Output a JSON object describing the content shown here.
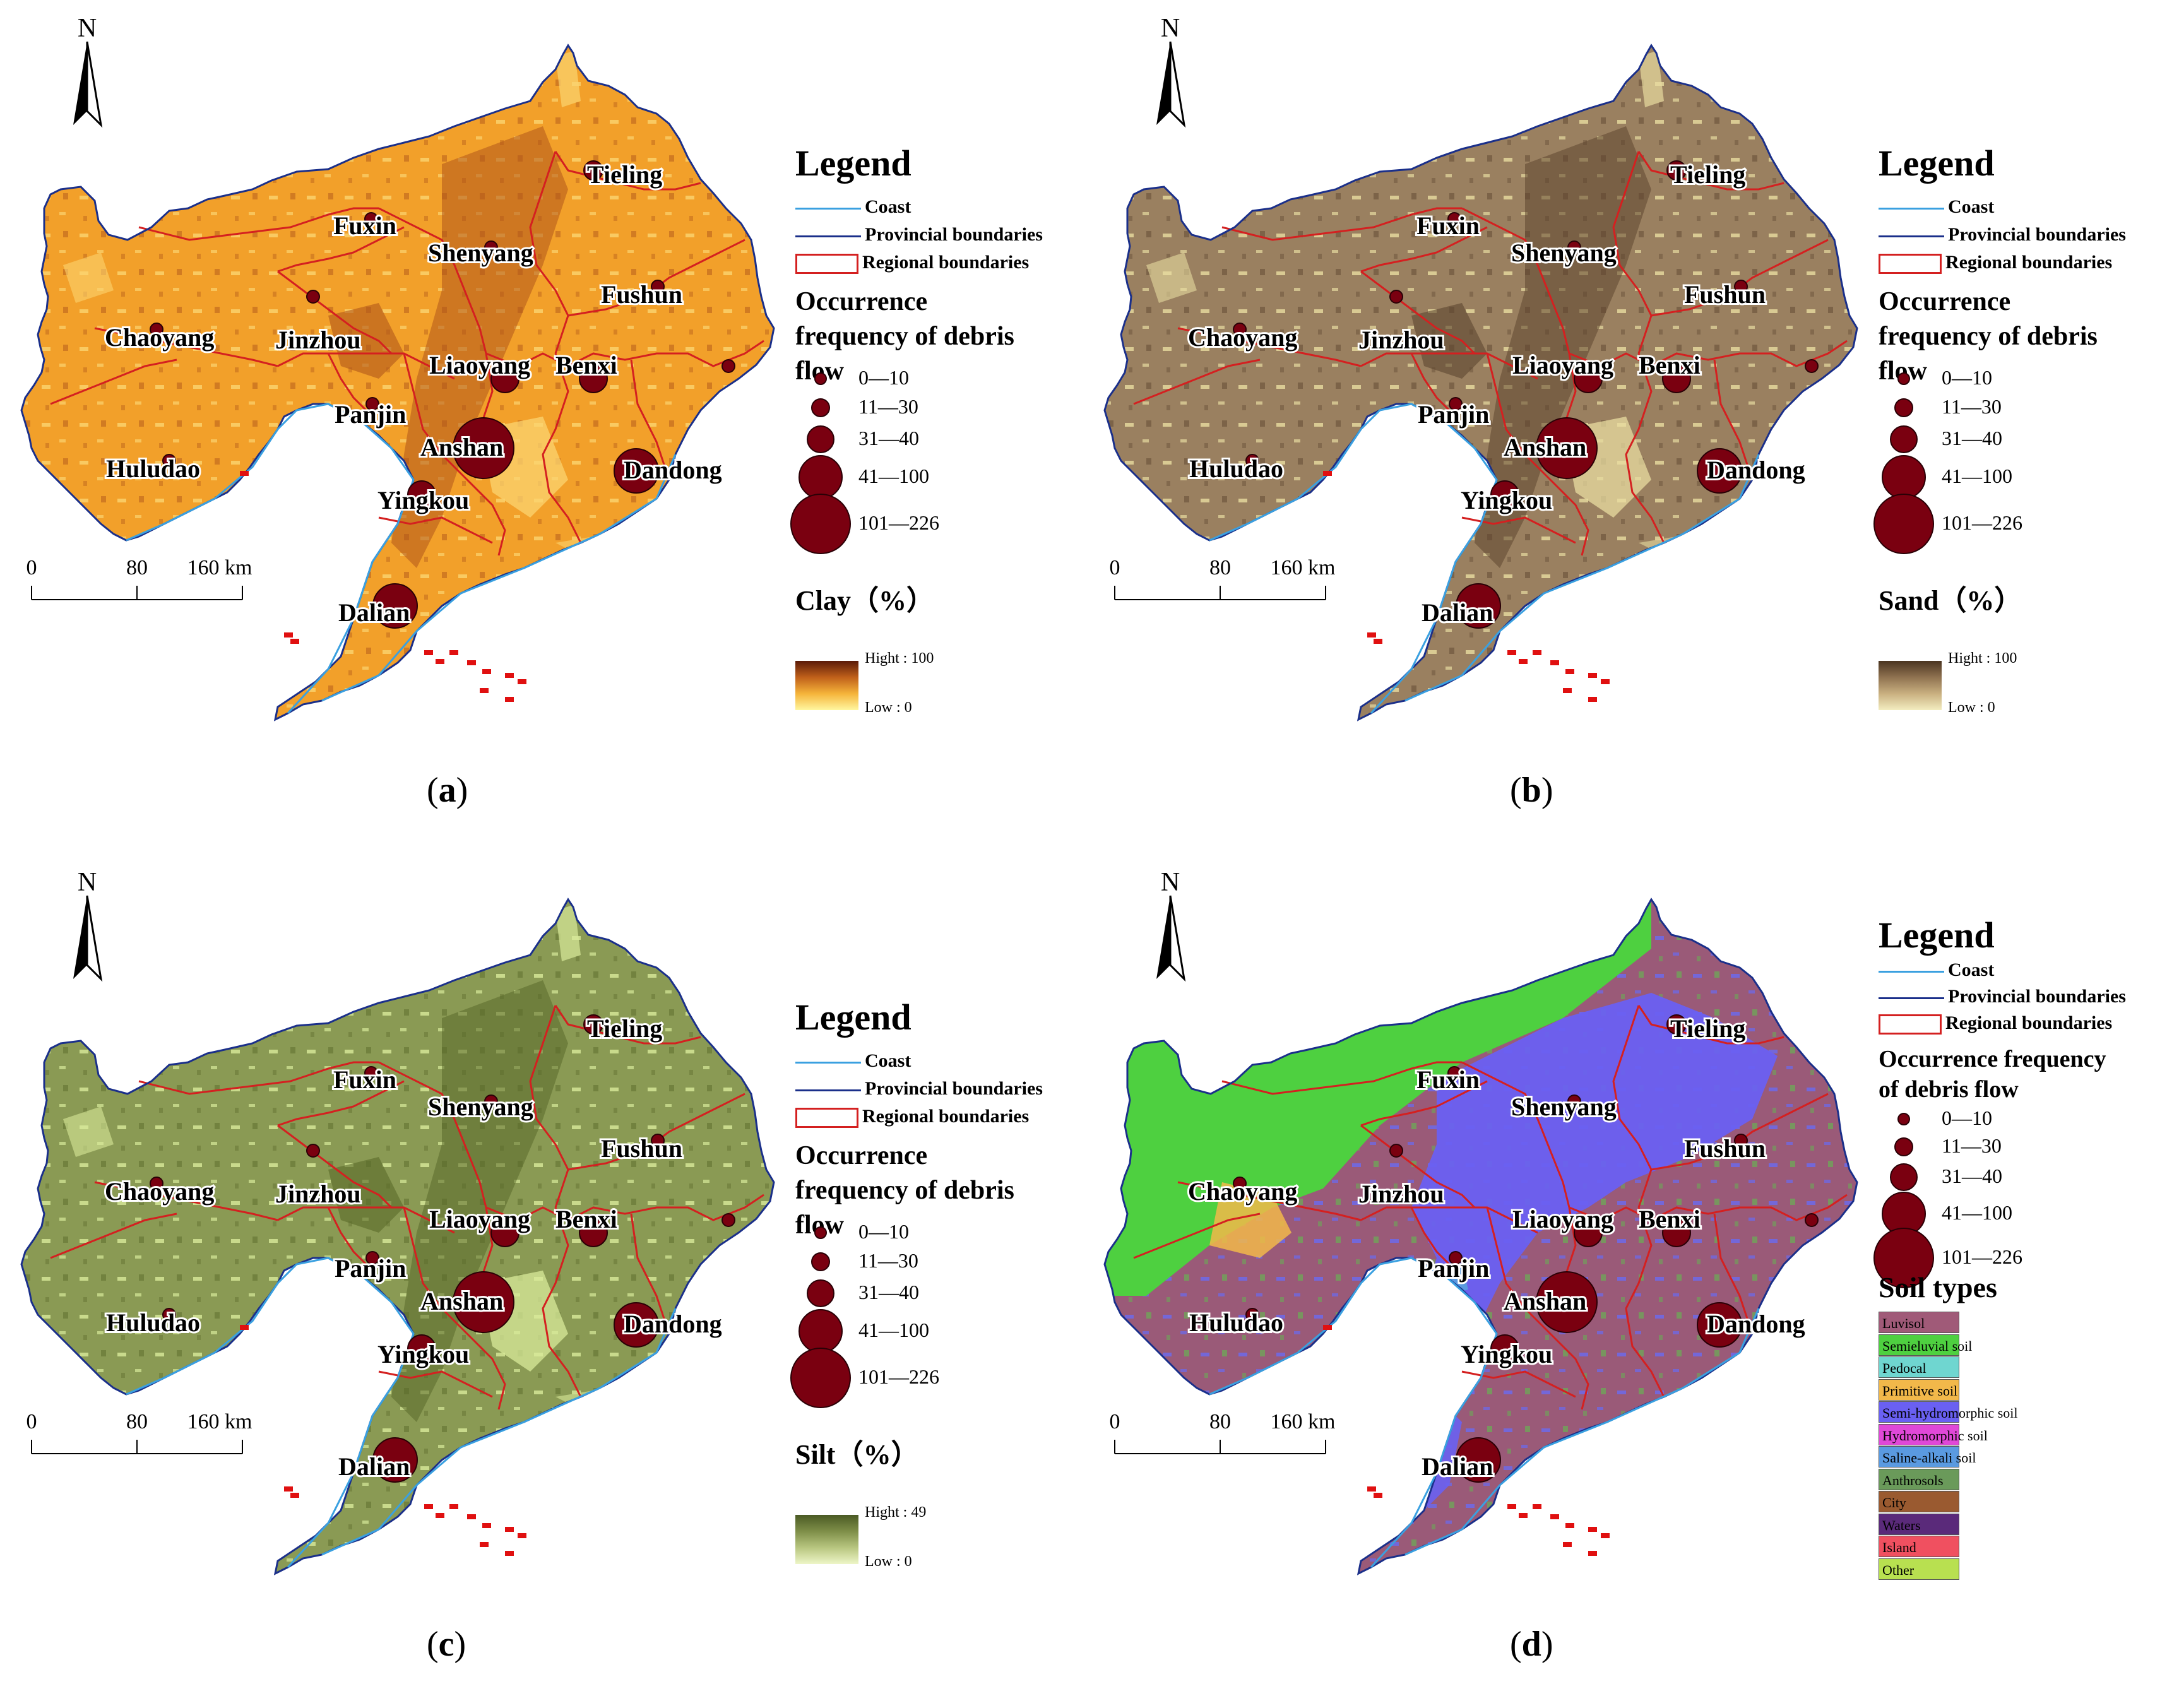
{
  "colors": {
    "coast": "#3aa0e0",
    "provincial": "#1a2f8a",
    "regional": "#d42020",
    "circle": "#7a0010",
    "islands": "#e01010"
  },
  "cities": [
    {
      "name": "Tieling",
      "freq_class": 2
    },
    {
      "name": "Fuxin",
      "freq_class": 1
    },
    {
      "name": "Shenyang",
      "freq_class": 1
    },
    {
      "name": "Fushun",
      "freq_class": 1
    },
    {
      "name": "Chaoyang",
      "freq_class": 1
    },
    {
      "name": "Jinzhou",
      "freq_class": 1
    },
    {
      "name": "Liaoyang",
      "freq_class": 3
    },
    {
      "name": "Benxi",
      "freq_class": 3
    },
    {
      "name": "Panjin",
      "freq_class": 1
    },
    {
      "name": "Anshan",
      "freq_class": 5
    },
    {
      "name": "Dandong",
      "freq_class": 4
    },
    {
      "name": "Huludao",
      "freq_class": 1
    },
    {
      "name": "Yingkou",
      "freq_class": 3
    },
    {
      "name": "Dalian",
      "freq_class": 4
    }
  ],
  "extra_point_freq_class": 1,
  "north_label": "N",
  "scalebar": {
    "ticks": [
      "0",
      "80",
      "160 km"
    ]
  },
  "legend": {
    "title": "Legend",
    "coast": "Coast",
    "provincial": "Provincial boundaries",
    "regional": "Regional boundaries",
    "occurrence": "Occurrence frequency of debris flow",
    "occurrence_lines": [
      "Occurrence",
      "frequency of debris",
      "flow"
    ],
    "occurrence_lines_d": [
      "Occurrence frequency",
      "of debris flow"
    ],
    "classes": [
      "0—10",
      "11—30",
      "31—40",
      "41—100",
      "101—226"
    ]
  },
  "panels": [
    {
      "label": "(a)",
      "label_letter": "a",
      "variable": "Clay（%）",
      "ramp_high": "Hight : 100",
      "ramp_low": "Low : 0",
      "ramp_colors": [
        "#fff7a0",
        "#f5b43a",
        "#c0601a",
        "#5a1a08"
      ],
      "fill_base": "#f2a02a",
      "fill_light": "#fbd470",
      "fill_dark": "#b0561a"
    },
    {
      "label": "(b)",
      "label_letter": "b",
      "variable": "Sand（%）",
      "ramp_high": "Hight : 100",
      "ramp_low": "Low : 0",
      "ramp_colors": [
        "#f3edc0",
        "#c9b080",
        "#8f7250",
        "#4a3420"
      ],
      "fill_base": "#9a8060",
      "fill_light": "#e8dca0",
      "fill_dark": "#5e4630"
    },
    {
      "label": "(c)",
      "label_letter": "c",
      "variable": "Silt（%）",
      "ramp_high": "Hight : 49",
      "ramp_low": "Low : 0",
      "ramp_colors": [
        "#eef6c8",
        "#b8c680",
        "#7e8e48",
        "#4a5a24"
      ],
      "fill_base": "#8a9a54",
      "fill_light": "#d8ea9a",
      "fill_dark": "#5a6a2a"
    },
    {
      "label": "(d)",
      "label_letter": "d",
      "variable": "Soil types",
      "ramp_high": "",
      "ramp_low": "",
      "ramp_colors": [],
      "fill_base": "#9a5a78",
      "fill_light": "#6a6af0",
      "fill_dark": "#55d045"
    }
  ],
  "soil_types": [
    {
      "name": "Luvisol",
      "color": "#a05a78"
    },
    {
      "name": "Semieluvial soil",
      "color": "#4ed040"
    },
    {
      "name": "Pedocal",
      "color": "#6fd6d0"
    },
    {
      "name": "Primitive soil",
      "color": "#f2b84a"
    },
    {
      "name": "Semi-hydromorphic soil",
      "color": "#6a60f2"
    },
    {
      "name": "Hydromorphic soil",
      "color": "#e048d8"
    },
    {
      "name": "Saline-alkali soil",
      "color": "#5a9ae0"
    },
    {
      "name": "Anthrosols",
      "color": "#6a9a5a"
    },
    {
      "name": "City",
      "color": "#9a5a30"
    },
    {
      "name": "Waters",
      "color": "#5a2a7a"
    },
    {
      "name": "Island",
      "color": "#f05060"
    },
    {
      "name": "Other",
      "color": "#b8e050"
    }
  ]
}
